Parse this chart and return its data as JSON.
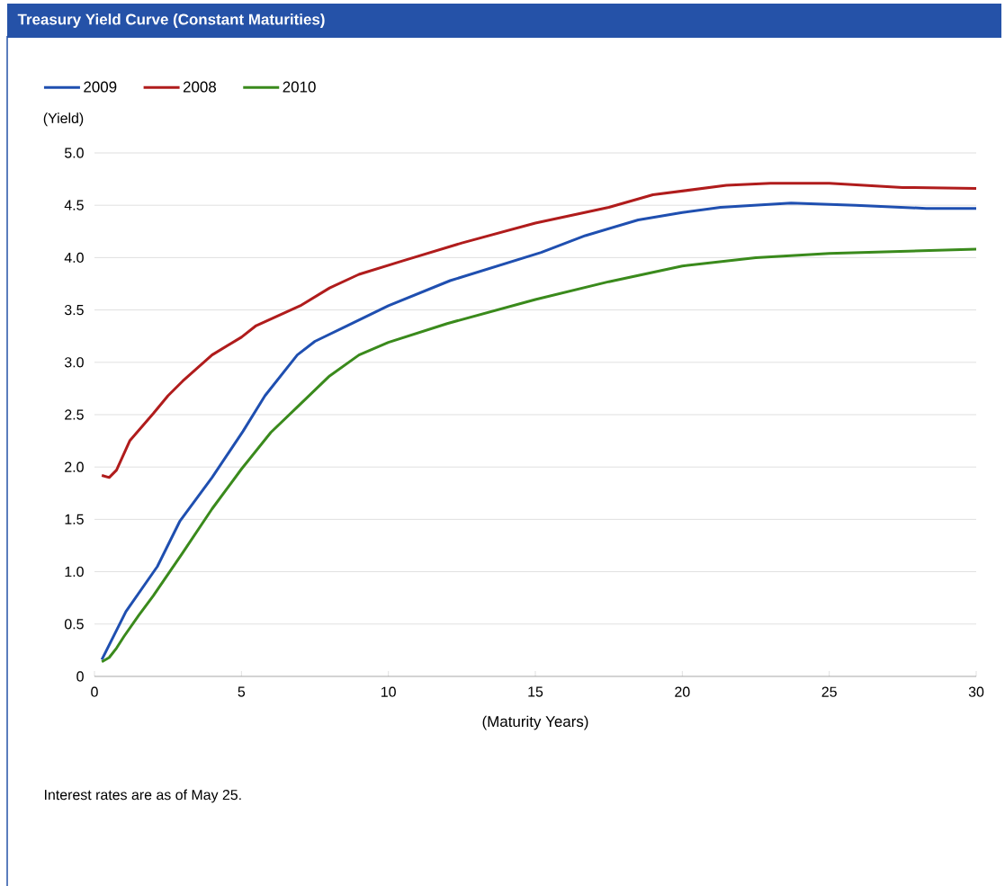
{
  "chart_data": {
    "type": "line",
    "title": "Treasury Yield Curve (Constant Maturities)",
    "xlabel": "(Maturity Years)",
    "ylabel": "(Yield)",
    "annotations": [
      "Interest rates are as of May 25."
    ],
    "xlim": [
      0,
      30
    ],
    "ylim": [
      0,
      5
    ],
    "xticks": [
      0,
      5,
      10,
      15,
      20,
      25,
      30
    ],
    "yticks": [
      0,
      0.5,
      {
        "value": 1,
        "label": "1.0"
      },
      1.5,
      {
        "value": 2,
        "label": "2.0"
      },
      2.5,
      {
        "value": 3,
        "label": "3.0"
      },
      3.5,
      {
        "value": 4,
        "label": "4.0"
      },
      4.5,
      {
        "value": 5,
        "label": "5.0"
      }
    ],
    "grid": "y",
    "legend": "top left",
    "marker": "none",
    "line_style": "solid",
    "series": [
      {
        "name": "2009",
        "color": "#1f4fb0",
        "x": [
          0.25,
          1.07,
          2.14,
          2.9,
          4,
          5.05,
          5.8,
          6.9,
          7.5,
          8.6,
          10,
          12.1,
          15.2,
          16.7,
          18.5,
          20,
          21.3,
          23.7,
          25.9,
          28.3,
          30
        ],
        "values": [
          0.16,
          0.62,
          1.05,
          1.48,
          1.9,
          2.34,
          2.68,
          3.07,
          3.2,
          3.35,
          3.54,
          3.78,
          4.05,
          4.21,
          4.36,
          4.43,
          4.48,
          4.52,
          4.5,
          4.47,
          4.47
        ]
      },
      {
        "name": "2008",
        "color": "#b01c1c",
        "x": [
          0.25,
          0.5,
          0.75,
          1.2,
          2,
          2.5,
          3,
          4,
          5,
          5.5,
          7,
          8,
          9,
          10.5,
          12.5,
          15,
          17.5,
          19,
          21.5,
          23,
          25,
          27.5,
          30
        ],
        "values": [
          1.92,
          1.9,
          1.97,
          2.25,
          2.51,
          2.68,
          2.82,
          3.07,
          3.24,
          3.35,
          3.54,
          3.71,
          3.84,
          3.97,
          4.14,
          4.33,
          4.48,
          4.6,
          4.69,
          4.71,
          4.71,
          4.67,
          4.66
        ]
      },
      {
        "name": "2010",
        "color": "#3a8a1c",
        "x": [
          0.25,
          0.5,
          0.75,
          1,
          1.5,
          2,
          3,
          4,
          5,
          6,
          7,
          8,
          9,
          10,
          12,
          15,
          17.5,
          20,
          22.5,
          25,
          27.5,
          30
        ],
        "values": [
          0.14,
          0.18,
          0.27,
          0.38,
          0.58,
          0.77,
          1.18,
          1.6,
          1.98,
          2.33,
          2.6,
          2.87,
          3.07,
          3.19,
          3.37,
          3.6,
          3.77,
          3.92,
          4.0,
          4.04,
          4.06,
          4.08
        ]
      }
    ]
  }
}
